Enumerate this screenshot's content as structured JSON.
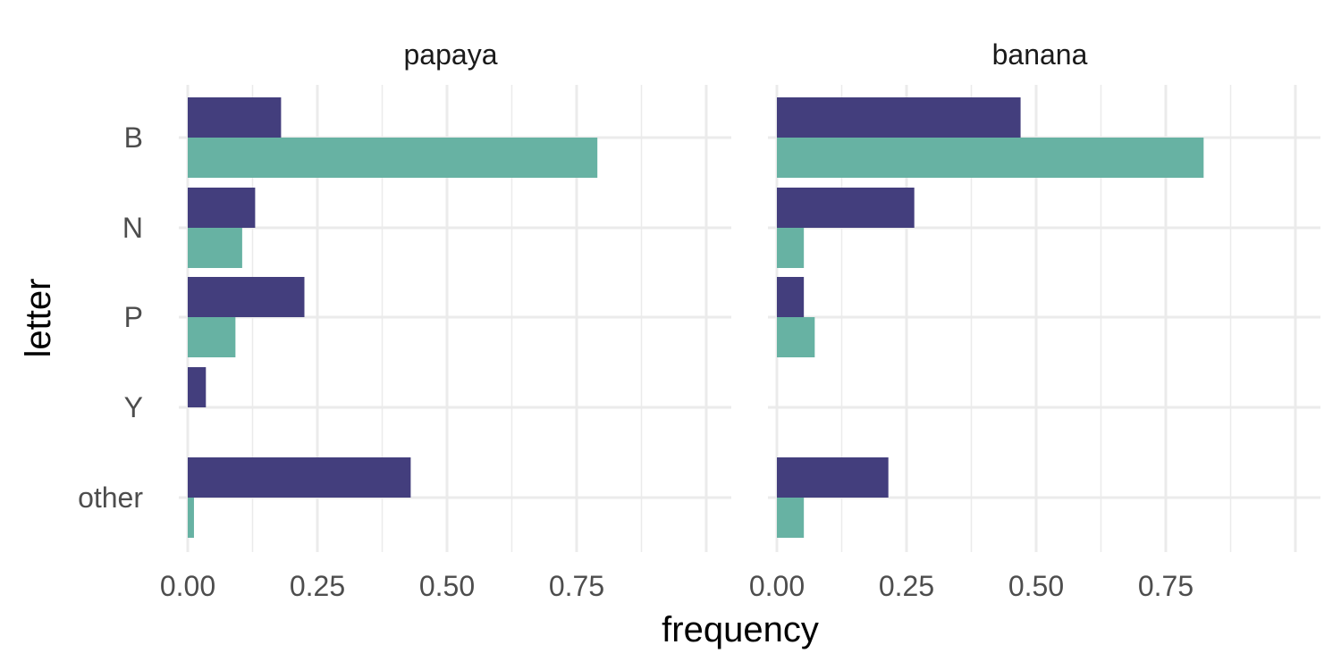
{
  "chart_data": {
    "type": "bar",
    "orientation": "horizontal",
    "xlabel": "frequency",
    "ylabel": "letter",
    "categories": [
      "B",
      "N",
      "P",
      "Y",
      "other"
    ],
    "xlim": [
      0,
      1
    ],
    "x_ticks": [
      "0.00",
      "0.25",
      "0.50",
      "0.75"
    ],
    "grid": true,
    "legend": "none",
    "series_colors": [
      "#433e7d",
      "#67b2a3"
    ],
    "facets": [
      {
        "label": "papaya",
        "series": [
          {
            "values": [
              0.18,
              0.13,
              0.225,
              0.035,
              0.43
            ]
          },
          {
            "values": [
              0.79,
              0.105,
              0.092,
              null,
              0.012
            ]
          }
        ]
      },
      {
        "label": "banana",
        "series": [
          {
            "values": [
              0.47,
              0.265,
              0.052,
              null,
              0.215
            ]
          },
          {
            "values": [
              0.823,
              0.052,
              0.073,
              null,
              0.052
            ]
          }
        ]
      }
    ]
  }
}
